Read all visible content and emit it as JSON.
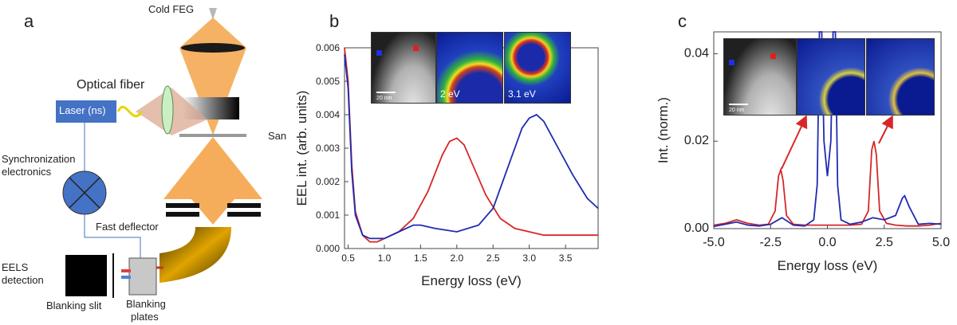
{
  "panel_a": {
    "letter": "a",
    "cold_feg": "Cold FEG",
    "optical_fiber": "Optical fiber",
    "laser": "Laser (ns)",
    "san": "San",
    "sync": [
      "Synchronization",
      "electronics"
    ],
    "fast_deflector": "Fast deflector",
    "eels": [
      "EELS",
      "detection"
    ],
    "blanking_slit": "Blanking slit",
    "blanking_plates": [
      "Blanking",
      "plates"
    ]
  },
  "panel_b": {
    "letter": "b",
    "map_labels": [
      "2 eV",
      "3.1 eV"
    ],
    "scale_label": "20 nm"
  },
  "panel_c": {
    "letter": "c",
    "scale_label": "20 nm"
  },
  "colors": {
    "red": "#d62728",
    "blue": "#1f2bb0",
    "orange": "#f5a449"
  },
  "chart_data": [
    {
      "type": "line",
      "xlabel": "Energy loss (eV)",
      "ylabel": "EEL int. (arb. units)",
      "xlim": [
        0.45,
        3.95
      ],
      "ylim": [
        0,
        0.006
      ],
      "xticks": [
        "0.5",
        "1.0",
        "1.5",
        "2.0",
        "2.5",
        "3.0",
        "3.5"
      ],
      "yticks": [
        "0.000",
        "0.001",
        "0.002",
        "0.003",
        "0.004",
        "0.005",
        "0.006"
      ],
      "series": [
        {
          "color": "red",
          "x": [
            0.45,
            0.5,
            0.55,
            0.6,
            0.7,
            0.8,
            0.9,
            1.0,
            1.2,
            1.4,
            1.6,
            1.8,
            1.9,
            2.0,
            2.1,
            2.2,
            2.4,
            2.6,
            2.8,
            3.0,
            3.2,
            3.4,
            3.6,
            3.8,
            3.95
          ],
          "y": [
            0.006,
            0.005,
            0.0025,
            0.0011,
            0.0004,
            0.0002,
            0.0002,
            0.0003,
            0.0005,
            0.0009,
            0.0017,
            0.0028,
            0.0032,
            0.0033,
            0.0031,
            0.0026,
            0.0016,
            0.0009,
            0.0006,
            0.0005,
            0.0004,
            0.0004,
            0.0004,
            0.0004,
            0.0004
          ]
        },
        {
          "color": "blue",
          "x": [
            0.45,
            0.5,
            0.55,
            0.6,
            0.7,
            0.8,
            0.9,
            1.0,
            1.2,
            1.4,
            1.5,
            1.7,
            2.0,
            2.3,
            2.5,
            2.7,
            2.9,
            3.0,
            3.1,
            3.2,
            3.4,
            3.6,
            3.8,
            3.95
          ],
          "y": [
            0.0058,
            0.0048,
            0.0023,
            0.001,
            0.0004,
            0.0003,
            0.0003,
            0.0003,
            0.0005,
            0.0007,
            0.0007,
            0.0006,
            0.0005,
            0.0007,
            0.0012,
            0.0024,
            0.0036,
            0.0039,
            0.004,
            0.0038,
            0.003,
            0.0022,
            0.0015,
            0.0012
          ]
        }
      ]
    },
    {
      "type": "line",
      "xlabel": "Energy loss (eV)",
      "ylabel": "Int. (norm.)",
      "xlim": [
        -5.0,
        5.0
      ],
      "ylim": [
        0,
        0.045
      ],
      "xticks": [
        "-5.0",
        "-2.5",
        "0.0",
        "2.5",
        "5.0"
      ],
      "yticks": [
        "0.00",
        "0.02",
        "0.04"
      ],
      "series": [
        {
          "color": "red",
          "x": [
            -5.0,
            -4.5,
            -4.0,
            -3.5,
            -3.0,
            -2.6,
            -2.3,
            -2.15,
            -2.05,
            -1.95,
            -1.8,
            -1.5,
            -1.0,
            -0.6,
            -0.4,
            -0.2,
            0.0,
            0.2,
            0.4,
            0.6,
            1.0,
            1.5,
            1.8,
            1.95,
            2.05,
            2.15,
            2.3,
            2.6,
            3.0,
            3.5,
            4.0,
            4.5,
            5.0
          ],
          "y": [
            0.0008,
            0.0012,
            0.002,
            0.0012,
            0.0008,
            0.001,
            0.004,
            0.012,
            0.0135,
            0.011,
            0.003,
            0.001,
            0.0008,
            0.0008,
            0.0008,
            0.0008,
            0.0008,
            0.0008,
            0.0008,
            0.0008,
            0.0008,
            0.001,
            0.004,
            0.018,
            0.02,
            0.017,
            0.004,
            0.0012,
            0.0008,
            0.0006,
            0.0006,
            0.0008,
            0.0012
          ]
        },
        {
          "color": "blue",
          "x": [
            -5.0,
            -4.5,
            -4.0,
            -3.5,
            -3.0,
            -2.5,
            -2.0,
            -1.5,
            -1.0,
            -0.6,
            -0.45,
            -0.35,
            -0.25,
            -0.15,
            0.0,
            0.15,
            0.25,
            0.35,
            0.45,
            0.6,
            1.0,
            1.5,
            2.0,
            2.5,
            3.0,
            3.3,
            3.4,
            3.6,
            4.0,
            4.5,
            5.0
          ],
          "y": [
            0.0005,
            0.001,
            0.0015,
            0.0008,
            0.0006,
            0.001,
            0.0025,
            0.0008,
            0.0006,
            0.002,
            0.01,
            0.045,
            0.045,
            0.02,
            0.012,
            0.02,
            0.045,
            0.045,
            0.01,
            0.002,
            0.001,
            0.0015,
            0.0025,
            0.002,
            0.003,
            0.007,
            0.0075,
            0.005,
            0.001,
            0.0012,
            0.001
          ]
        }
      ]
    }
  ]
}
